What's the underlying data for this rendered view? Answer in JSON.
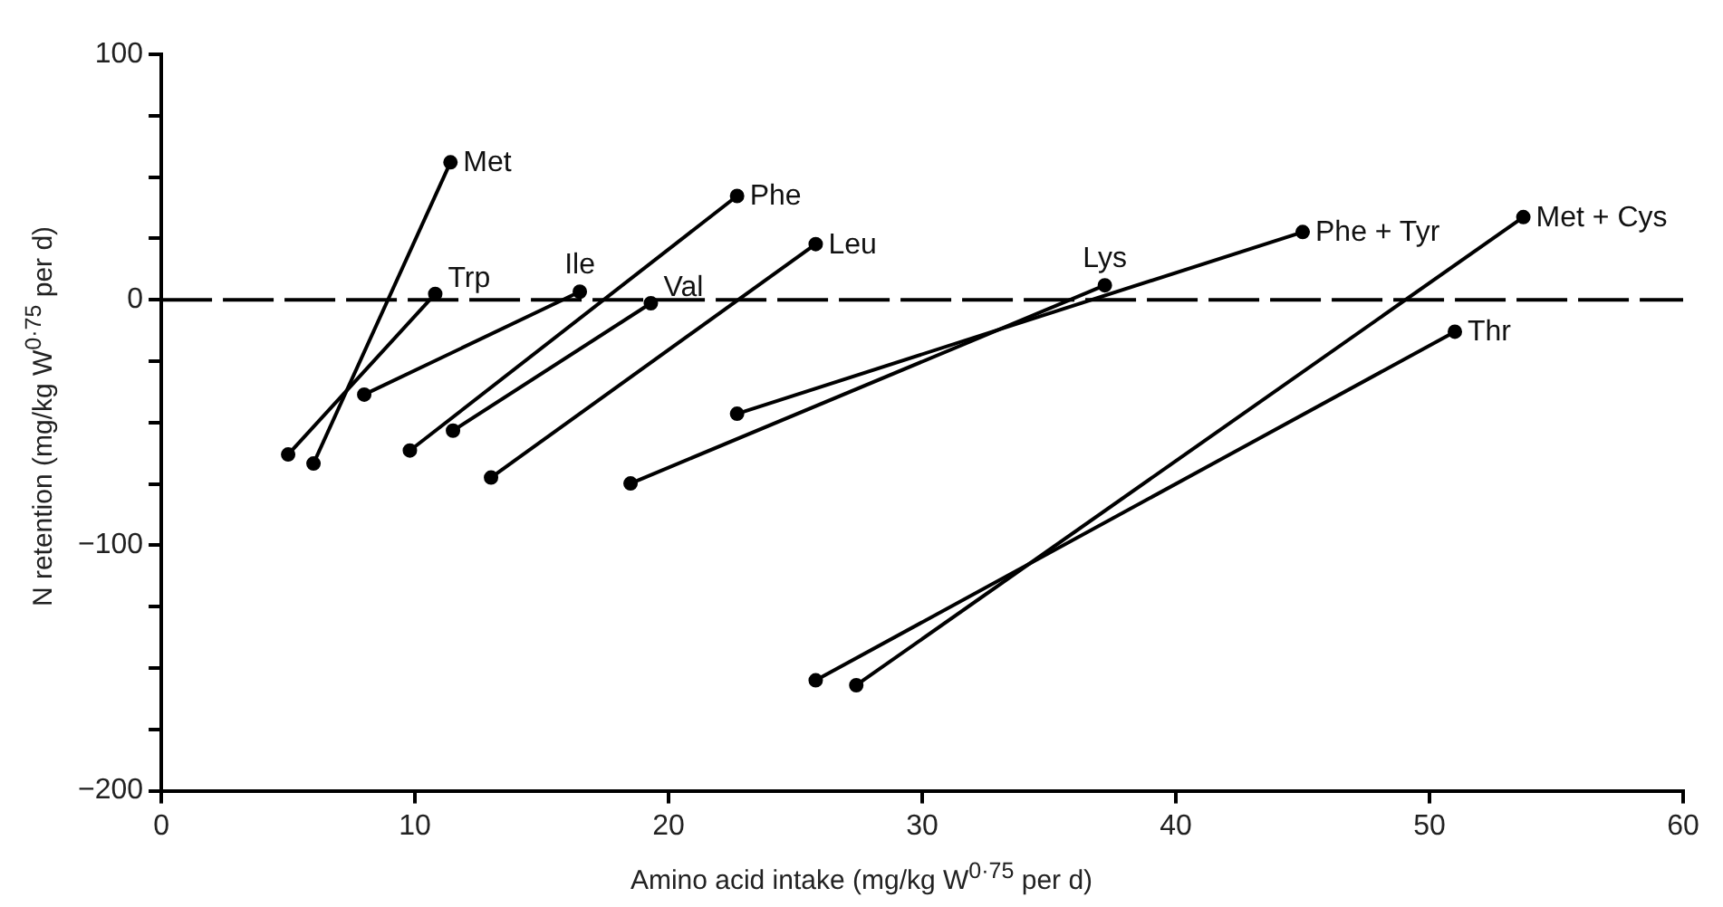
{
  "chart_data": {
    "type": "line",
    "xlabel": "Amino acid intake (mg/kg W$^{0·75}$ per d)",
    "ylabel": "N retention (mg/kg W$^{0·75}$ per d)",
    "xlim": [
      0,
      60
    ],
    "xticks": [
      0,
      10,
      20,
      30,
      40,
      50,
      60
    ],
    "ylim": [
      -200,
      100
    ],
    "yticks": [
      100,
      {
        "value": 75,
        "label": null
      },
      {
        "value": 50,
        "label": null
      },
      {
        "value": 25,
        "label": null
      },
      0,
      {
        "value": -25,
        "label": null
      },
      {
        "value": -50,
        "label": null
      },
      {
        "value": -75,
        "label": null
      },
      -100,
      {
        "value": -125,
        "label": null
      },
      {
        "value": -150,
        "label": null
      },
      {
        "value": -175,
        "label": null
      },
      -200
    ],
    "grid": false,
    "legend": false,
    "marker": "circle",
    "line_style": "solid",
    "ref_lines": [
      {
        "axis": "y",
        "value": 0,
        "color": "#000000",
        "line_style": "dashed"
      }
    ],
    "series": [
      {
        "name": "Met",
        "color": "#000000",
        "x": [
          6.0,
          11.4
        ],
        "values": [
          -66.7,
          56
        ]
      },
      {
        "name": "Trp",
        "color": "#000000",
        "x": [
          5.0,
          10.8
        ],
        "values": [
          -63,
          2.4
        ]
      },
      {
        "name": "Ile",
        "color": "#000000",
        "x": [
          8.0,
          16.5
        ],
        "values": [
          -38.6,
          3.3
        ]
      },
      {
        "name": "Val",
        "color": "#000000",
        "x": [
          11.5,
          19.3
        ],
        "values": [
          -53.3,
          -1.4
        ]
      },
      {
        "name": "Phe",
        "color": "#000000",
        "x": [
          9.8,
          22.7
        ],
        "values": [
          -61.4,
          42.3
        ]
      },
      {
        "name": "Leu",
        "color": "#000000",
        "x": [
          13.0,
          25.8
        ],
        "values": [
          -72.4,
          22.7
        ]
      },
      {
        "name": "Lys",
        "color": "#000000",
        "x": [
          18.5,
          37.2
        ],
        "values": [
          -74.8,
          5.9
        ]
      },
      {
        "name": "Phe + Tyr",
        "color": "#000000",
        "x": [
          22.7,
          45.0
        ],
        "values": [
          -46.4,
          27.6
        ]
      },
      {
        "name": "Met + Cys",
        "color": "#000000",
        "x": [
          27.4,
          53.7
        ],
        "values": [
          -157,
          33.7
        ]
      },
      {
        "name": "Thr",
        "color": "#000000",
        "x": [
          25.8,
          51.0
        ],
        "values": [
          -155,
          -13
        ]
      }
    ]
  }
}
